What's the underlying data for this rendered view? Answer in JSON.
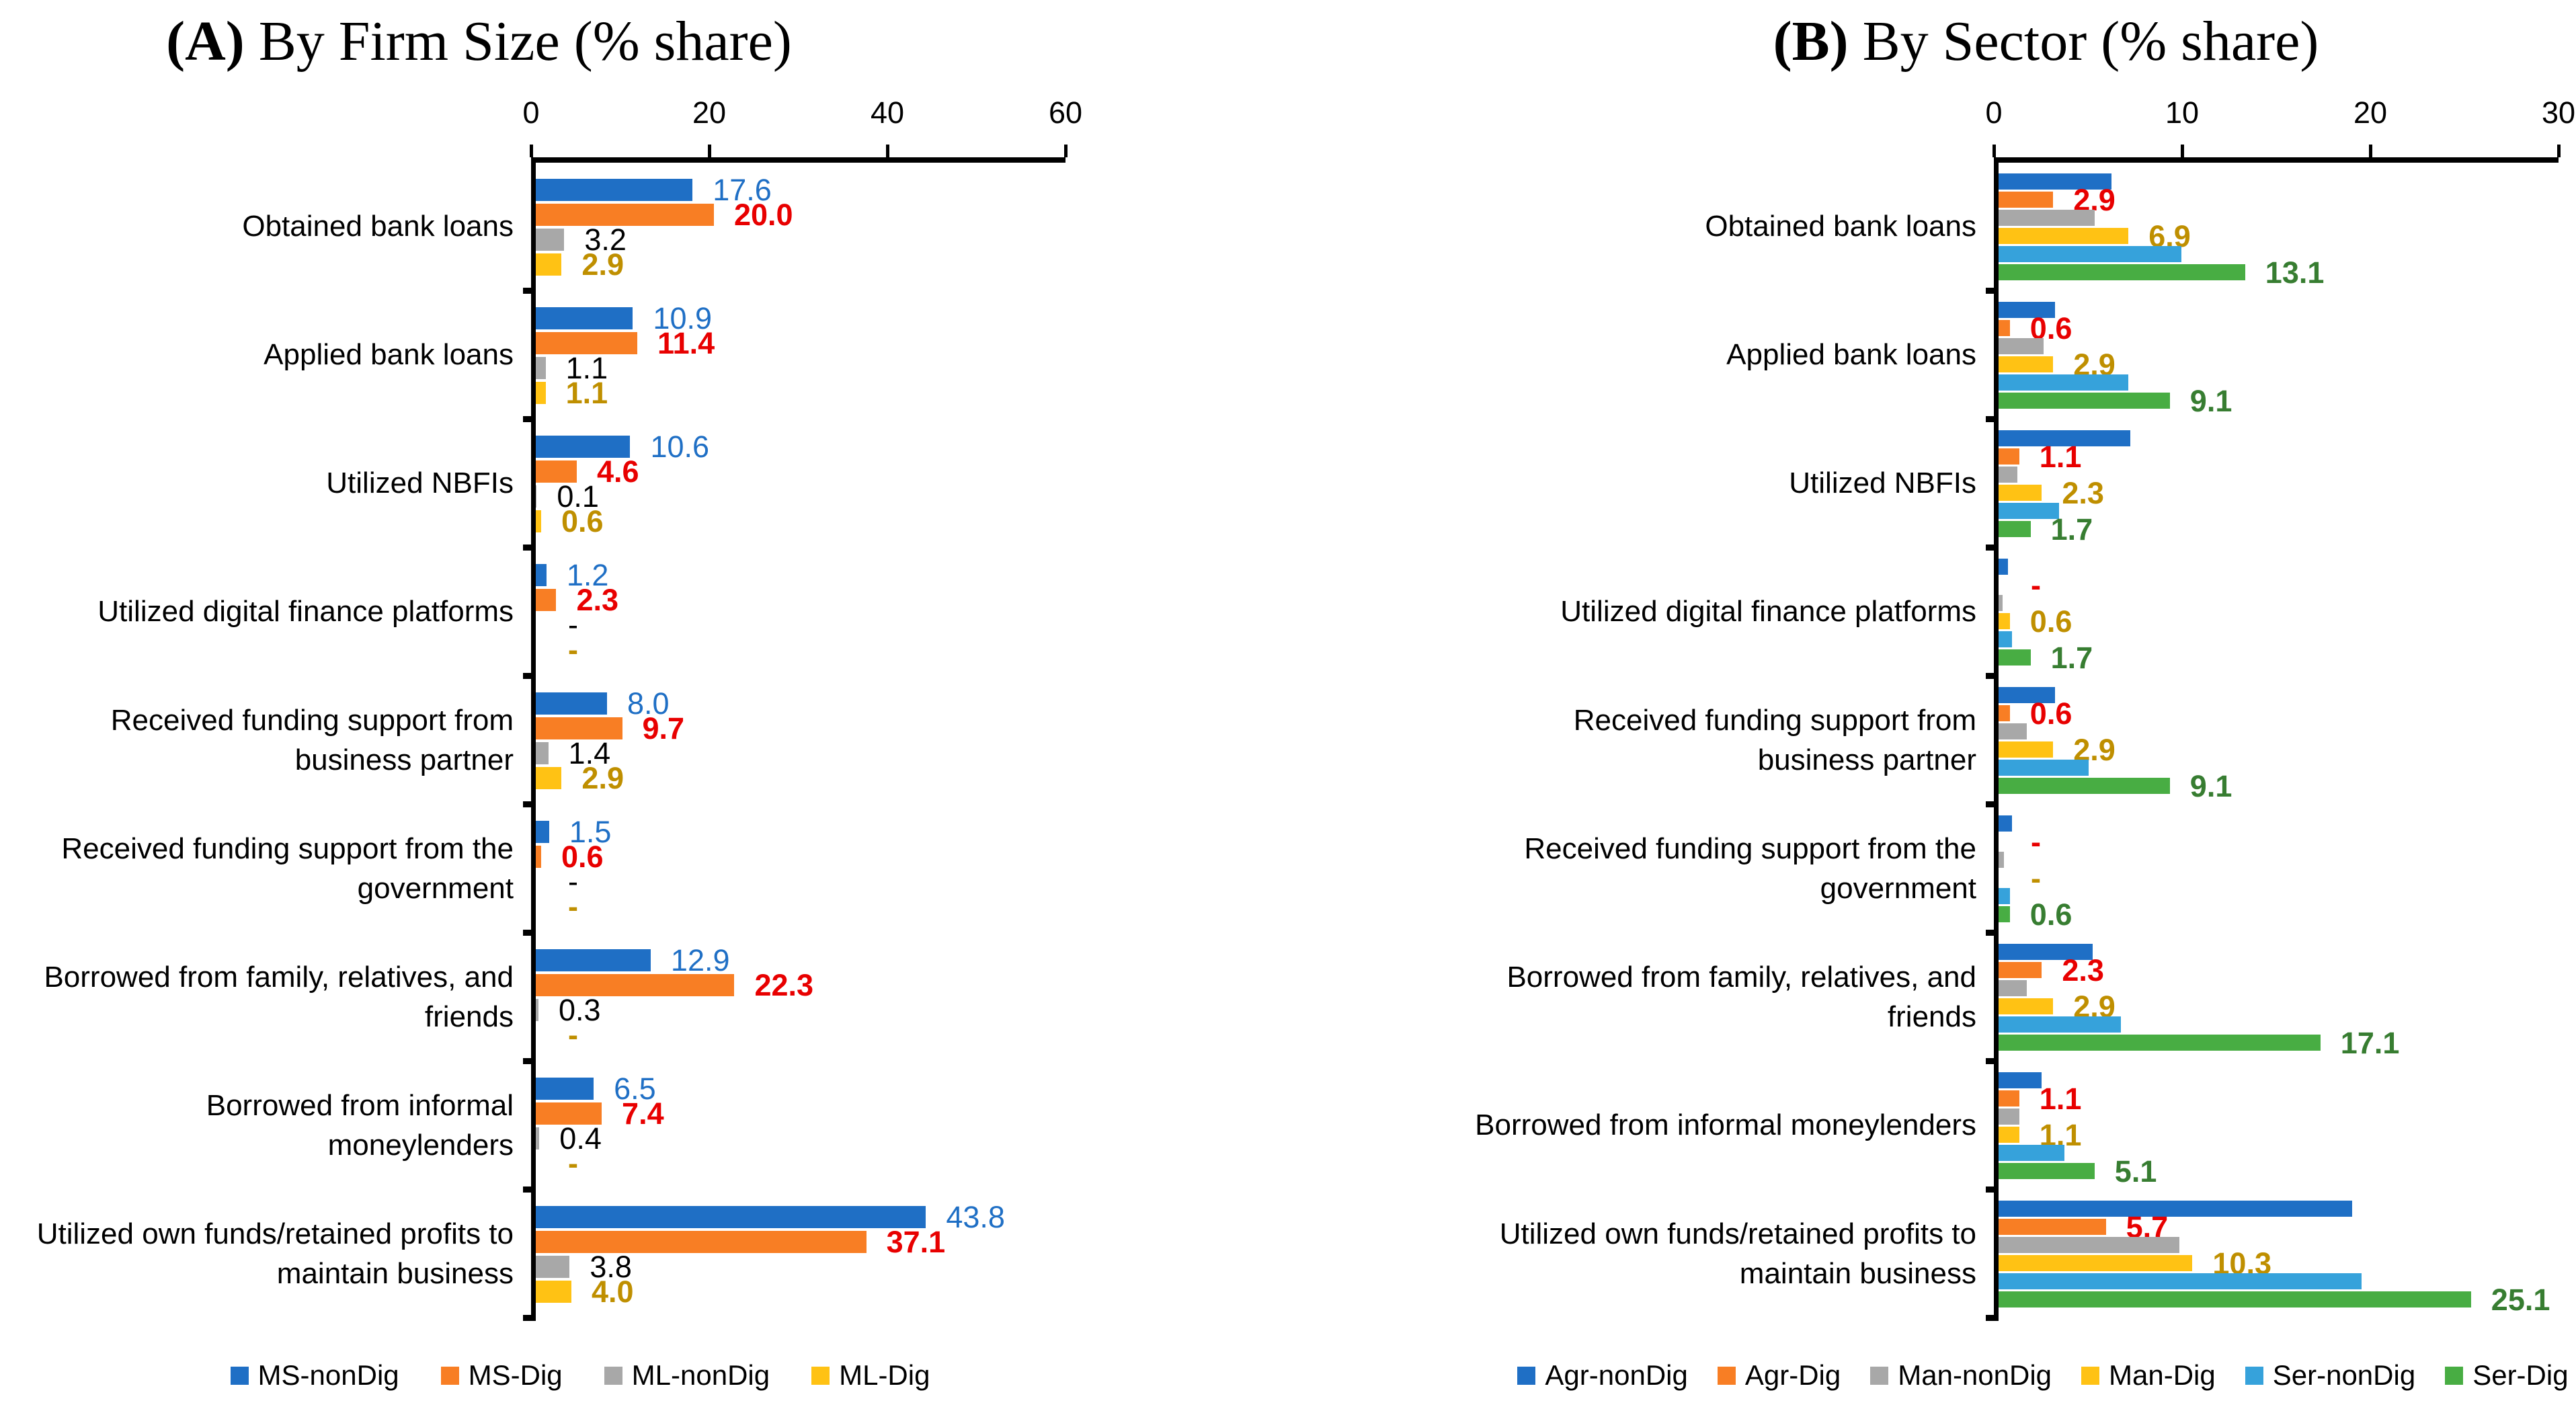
{
  "figure": {
    "background": "#ffffff"
  },
  "chart_data": [
    {
      "id": "A",
      "type": "bar",
      "orientation": "horizontal",
      "title": {
        "prefix": "(A)",
        "rest": " By Firm Size (% share)"
      },
      "x_axis": {
        "min": 0,
        "max": 60,
        "ticks": [
          0,
          20,
          40,
          60
        ]
      },
      "grid": false,
      "legend_position": "bottom",
      "series": [
        {
          "name": "MS-nonDig",
          "color": "#1F6FC5",
          "label_color": "#1F6FC5",
          "label_bold": false
        },
        {
          "name": "MS-Dig",
          "color": "#F87E24",
          "label_color": "#E80000",
          "label_bold": true
        },
        {
          "name": "ML-nonDig",
          "color": "#A8A8A8",
          "label_color": "#000000",
          "label_bold": false
        },
        {
          "name": "ML-Dig",
          "color": "#FFC214",
          "label_color": "#BF8F00",
          "label_bold": true
        }
      ],
      "rows": [
        {
          "category": "Obtained bank loans",
          "values": [
            17.6,
            20.0,
            3.2,
            2.9
          ],
          "labels": [
            "17.6",
            "20.0",
            "3.2",
            "2.9"
          ]
        },
        {
          "category": "Applied bank loans",
          "values": [
            10.9,
            11.4,
            1.1,
            1.1
          ],
          "labels": [
            "10.9",
            "11.4",
            "1.1",
            "1.1"
          ]
        },
        {
          "category": "Utilized NBFIs",
          "values": [
            10.6,
            4.6,
            0.1,
            0.6
          ],
          "labels": [
            "10.6",
            "4.6",
            "0.1",
            "0.6"
          ]
        },
        {
          "category": "Utilized digital finance platforms",
          "values": [
            1.2,
            2.3,
            0,
            0
          ],
          "labels": [
            "1.2",
            "2.3",
            "-",
            "-"
          ]
        },
        {
          "category": "Received funding support from\nbusiness partner",
          "values": [
            8.0,
            9.7,
            1.4,
            2.9
          ],
          "labels": [
            "8.0",
            "9.7",
            "1.4",
            "2.9"
          ]
        },
        {
          "category": "Received funding support from the\ngovernment",
          "values": [
            1.5,
            0.6,
            0,
            0
          ],
          "labels": [
            "1.5",
            "0.6",
            "-",
            "-"
          ]
        },
        {
          "category": "Borrowed from family, relatives, and\nfriends",
          "values": [
            12.9,
            22.3,
            0.3,
            0
          ],
          "labels": [
            "12.9",
            "22.3",
            "0.3",
            "-"
          ]
        },
        {
          "category": "Borrowed from informal moneylenders",
          "values": [
            6.5,
            7.4,
            0.4,
            0
          ],
          "labels": [
            "6.5",
            "7.4",
            "0.4",
            "-"
          ]
        },
        {
          "category": "Utilized own funds/retained profits to\nmaintain business",
          "values": [
            43.8,
            37.1,
            3.8,
            4.0
          ],
          "labels": [
            "43.8",
            "37.1",
            "3.8",
            "4.0"
          ]
        }
      ]
    },
    {
      "id": "B",
      "type": "bar",
      "orientation": "horizontal",
      "title": {
        "prefix": "(B)",
        "rest": " By Sector (% share)"
      },
      "x_axis": {
        "min": 0,
        "max": 30,
        "ticks": [
          0,
          10,
          20,
          30
        ]
      },
      "grid": false,
      "legend_position": "bottom",
      "series": [
        {
          "name": "Agr-nonDig",
          "color": "#1F6FC5",
          "label_color": "#1F6FC5",
          "label_bold": false
        },
        {
          "name": "Agr-Dig",
          "color": "#F87E24",
          "label_color": "#E80000",
          "label_bold": true
        },
        {
          "name": "Man-nonDig",
          "color": "#A8A8A8",
          "label_color": "#000000",
          "label_bold": false
        },
        {
          "name": "Man-Dig",
          "color": "#FFC214",
          "label_color": "#BF8F00",
          "label_bold": true
        },
        {
          "name": "Ser-nonDig",
          "color": "#36A2DB",
          "label_color": "#36A2DB",
          "label_bold": false
        },
        {
          "name": "Ser-Dig",
          "color": "#48AD43",
          "label_color": "#377D31",
          "label_bold": true
        }
      ],
      "rows": [
        {
          "category": "Obtained bank loans",
          "values": [
            6.0,
            2.9,
            5.1,
            6.9,
            9.7,
            13.1
          ],
          "labels": [
            null,
            "2.9",
            null,
            "6.9",
            null,
            "13.1"
          ]
        },
        {
          "category": "Applied bank loans",
          "values": [
            3.0,
            0.6,
            2.4,
            2.9,
            6.9,
            9.1
          ],
          "labels": [
            null,
            "0.6",
            null,
            "2.9",
            null,
            "9.1"
          ]
        },
        {
          "category": "Utilized NBFIs",
          "values": [
            7.0,
            1.1,
            1.0,
            2.3,
            3.2,
            1.7
          ],
          "labels": [
            null,
            "1.1",
            null,
            "2.3",
            null,
            "1.7"
          ]
        },
        {
          "category": "Utilized digital finance platforms",
          "values": [
            0.5,
            0,
            0.2,
            0.6,
            0.7,
            1.7
          ],
          "labels": [
            null,
            "-",
            null,
            "0.6",
            null,
            "1.7"
          ]
        },
        {
          "category": "Received funding support from\nbusiness partner",
          "values": [
            3.0,
            0.6,
            1.5,
            2.9,
            4.8,
            9.1
          ],
          "labels": [
            null,
            "0.6",
            null,
            "2.9",
            null,
            "9.1"
          ]
        },
        {
          "category": "Received funding support from the\ngovernment",
          "values": [
            0.7,
            0,
            0.3,
            0,
            0.6,
            0.6
          ],
          "labels": [
            null,
            "-",
            null,
            "-",
            null,
            "0.6"
          ]
        },
        {
          "category": "Borrowed from family, relatives, and\nfriends",
          "values": [
            5.0,
            2.3,
            1.5,
            2.9,
            6.5,
            17.1
          ],
          "labels": [
            null,
            "2.3",
            null,
            "2.9",
            null,
            "17.1"
          ]
        },
        {
          "category": "Borrowed from informal moneylenders",
          "values": [
            2.3,
            1.1,
            1.1,
            1.1,
            3.5,
            5.1
          ],
          "labels": [
            null,
            "1.1",
            null,
            "1.1",
            null,
            "5.1"
          ]
        },
        {
          "category": "Utilized own funds/retained profits to\nmaintain business",
          "values": [
            18.8,
            5.7,
            9.6,
            10.3,
            19.3,
            25.1
          ],
          "labels": [
            null,
            "5.7",
            null,
            "10.3",
            null,
            "25.1"
          ]
        }
      ]
    }
  ]
}
